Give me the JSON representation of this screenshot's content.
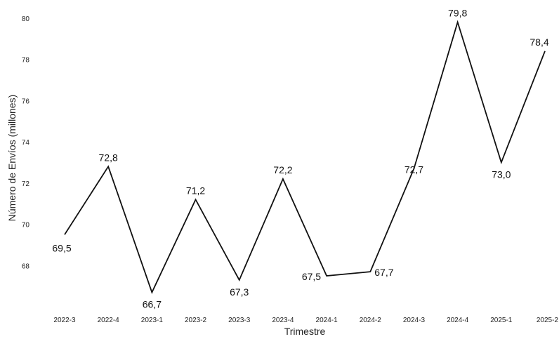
{
  "chart_data": {
    "type": "line",
    "title": "",
    "xlabel": "Trimestre",
    "ylabel": "Número de Envíos (millones)",
    "categories": [
      "2022-3",
      "2022-4",
      "2023-1",
      "2023-2",
      "2023-3",
      "2023-4",
      "2024-1",
      "2024-2",
      "2024-3",
      "2024-4",
      "2025-1",
      "2025-2"
    ],
    "values": [
      69.5,
      72.8,
      66.7,
      71.2,
      67.3,
      72.2,
      67.5,
      67.7,
      72.7,
      79.8,
      73.0,
      78.4
    ],
    "value_labels": [
      "69,5",
      "72,8",
      "66,7",
      "71,2",
      "67,3",
      "72,2",
      "67,5",
      "67,7",
      "72,7",
      "79,8",
      "73,0",
      "78,4"
    ],
    "ylim": [
      65.8,
      80.4
    ],
    "yticks": [
      68,
      70,
      72,
      74,
      76,
      78,
      80
    ],
    "grid": false,
    "colors": {
      "line": "#111111"
    }
  }
}
